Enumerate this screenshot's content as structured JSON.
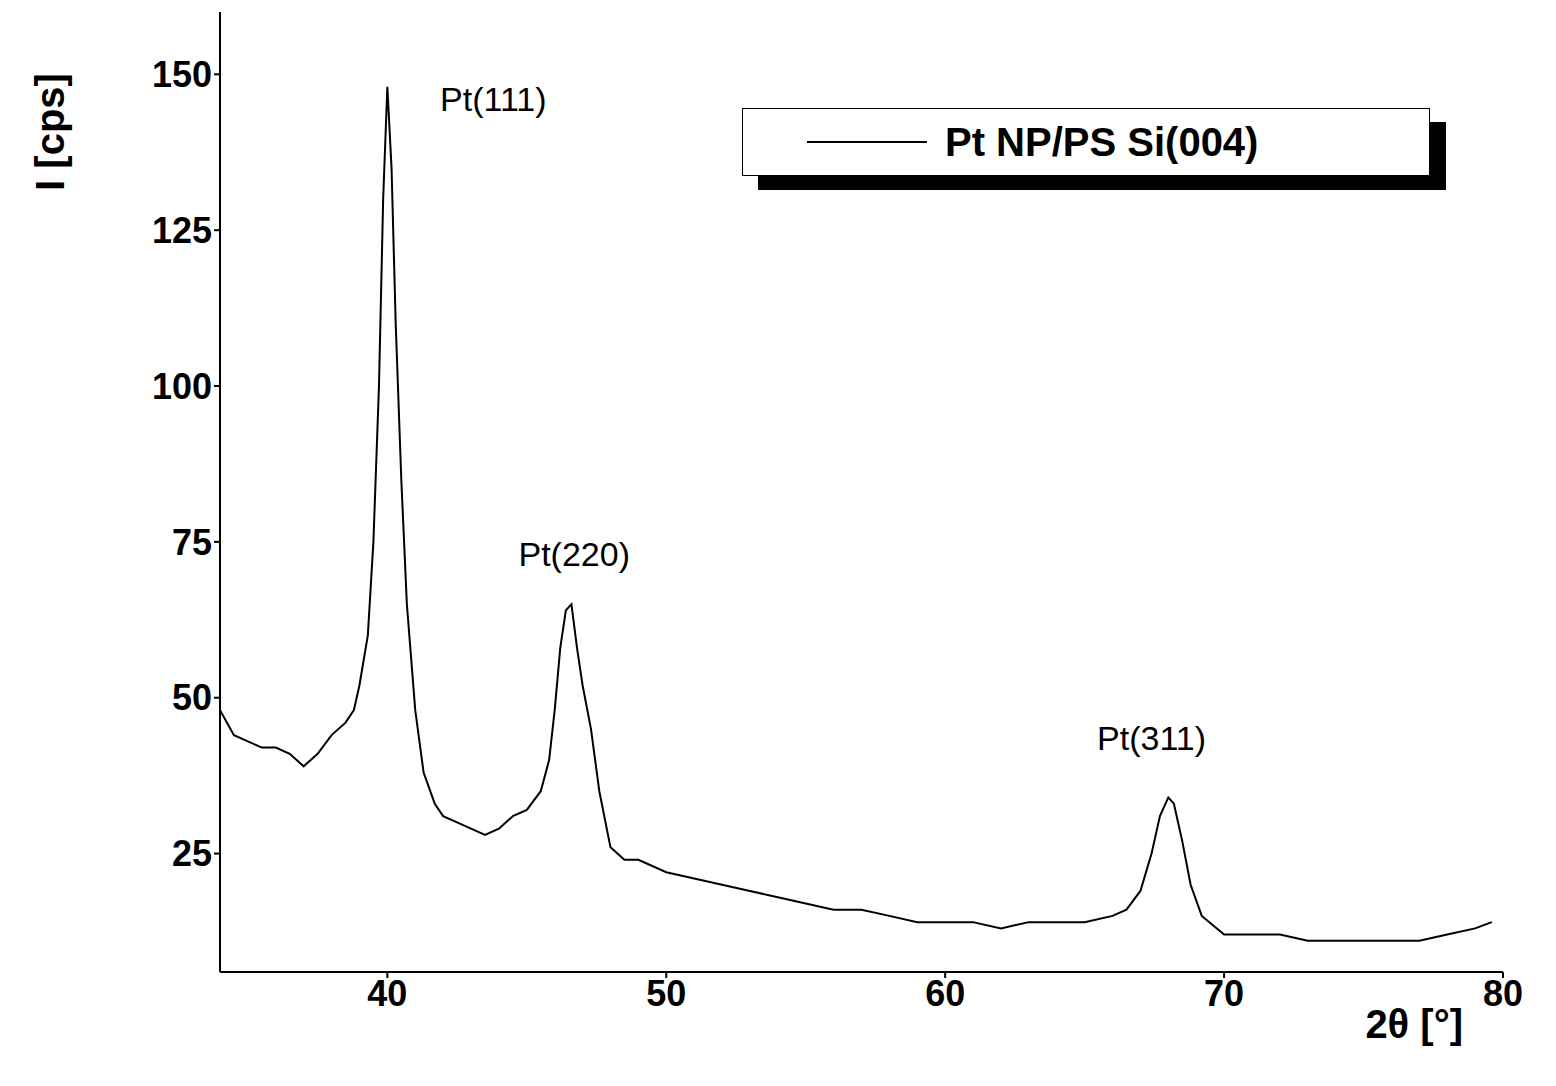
{
  "chart_data": {
    "type": "line",
    "x_label": "2θ [°]",
    "y_label": "I [cps]",
    "xlim": [
      34,
      80
    ],
    "xticks": [
      40,
      50,
      60,
      70,
      80
    ],
    "ylim": [
      6,
      160
    ],
    "yticks": [
      25,
      50,
      75,
      100,
      125,
      150
    ],
    "grid": false,
    "legend": "upper right",
    "series": [
      {
        "name": "Pt NP/PS Si(004)",
        "color": "#000000",
        "x": [
          34,
          34.5,
          35,
          35.5,
          36,
          36.5,
          37,
          37.5,
          38,
          38.5,
          38.8,
          39.0,
          39.3,
          39.5,
          39.7,
          39.85,
          40.0,
          40.15,
          40.3,
          40.5,
          40.7,
          41.0,
          41.3,
          41.7,
          42,
          42.5,
          43,
          43.5,
          44,
          44.5,
          45,
          45.5,
          45.8,
          46.0,
          46.2,
          46.4,
          46.6,
          46.8,
          47.0,
          47.3,
          47.6,
          48,
          48.5,
          49,
          50,
          51,
          52,
          53,
          54,
          55,
          56,
          57,
          58,
          59,
          60,
          61,
          62,
          63,
          64,
          65,
          66,
          66.5,
          67,
          67.4,
          67.7,
          68.0,
          68.2,
          68.5,
          68.8,
          69.2,
          70,
          71,
          72,
          73,
          74,
          75,
          76,
          77,
          78,
          79,
          79.6
        ],
        "values": [
          48,
          44,
          43,
          42,
          42,
          41,
          39,
          41,
          44,
          46,
          48,
          52,
          60,
          75,
          100,
          130,
          148,
          135,
          110,
          85,
          65,
          48,
          38,
          33,
          31,
          30,
          29,
          28,
          29,
          31,
          32,
          35,
          40,
          48,
          58,
          64,
          65,
          58,
          52,
          45,
          35,
          26,
          24,
          24,
          22,
          21,
          20,
          19,
          18,
          17,
          16,
          16,
          15,
          14,
          14,
          14,
          13,
          14,
          14,
          14,
          15,
          16,
          19,
          25,
          31,
          34,
          33,
          27,
          20,
          15,
          12,
          12,
          12,
          11,
          11,
          11,
          11,
          11,
          12,
          13,
          14
        ]
      }
    ],
    "annotations": [
      {
        "text": "Pt(111)",
        "x": 43.8,
        "y": 145.5
      },
      {
        "text": "Pt(220)",
        "x": 46.7,
        "y": 72.6
      },
      {
        "text": "Pt(311)",
        "x": 67.4,
        "y": 43
      }
    ]
  }
}
